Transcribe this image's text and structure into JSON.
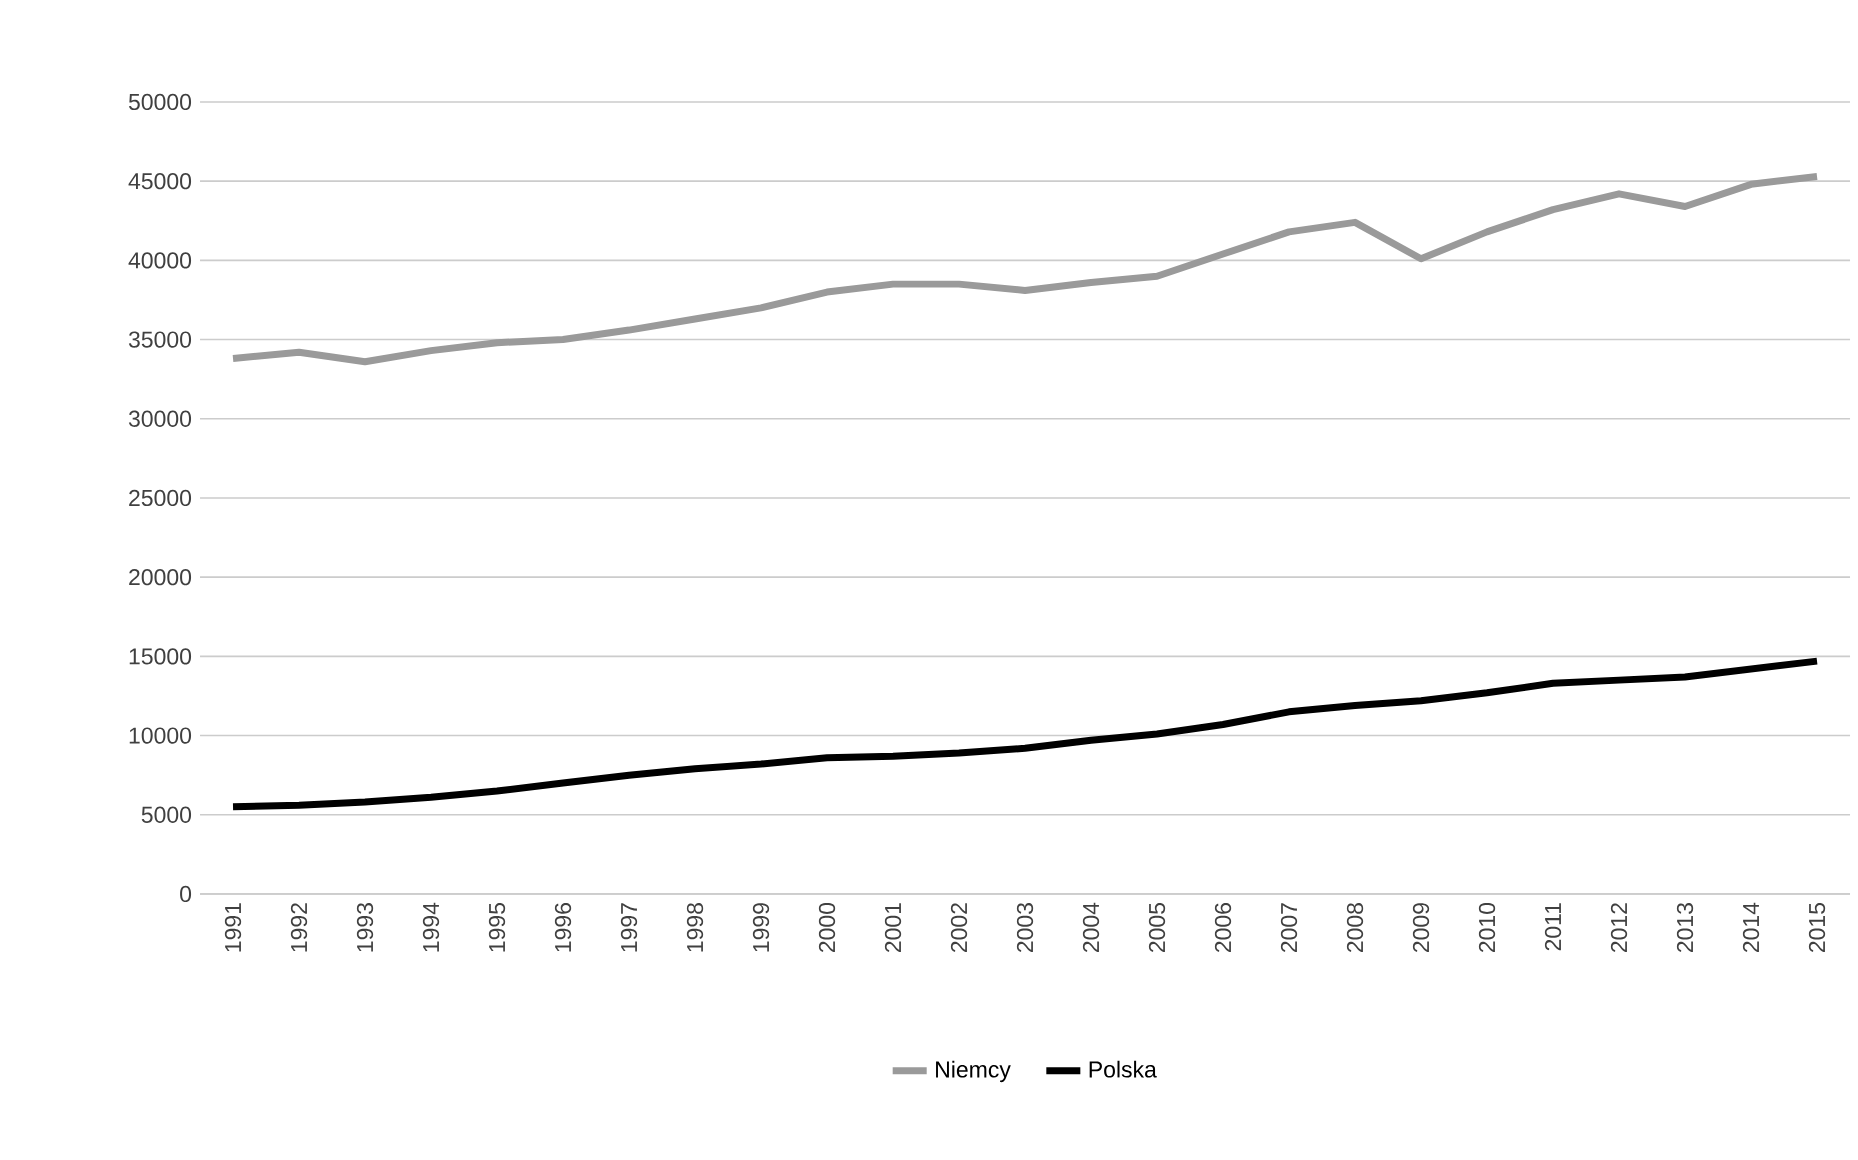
{
  "chart_data": {
    "type": "line",
    "categories": [
      "1991",
      "1992",
      "1993",
      "1994",
      "1995",
      "1996",
      "1997",
      "1998",
      "1999",
      "2000",
      "2001",
      "2002",
      "2003",
      "2004",
      "2005",
      "2006",
      "2007",
      "2008",
      "2009",
      "2010",
      "2011",
      "2012",
      "2013",
      "2014",
      "2015"
    ],
    "series": [
      {
        "name": "Niemcy",
        "color": "#9a9a9a",
        "values": [
          33800,
          34200,
          33600,
          34300,
          34800,
          35000,
          35600,
          36300,
          37000,
          38000,
          38500,
          38500,
          38100,
          38600,
          39000,
          40400,
          41800,
          42400,
          40100,
          41800,
          43200,
          44200,
          43400,
          44800,
          45300
        ]
      },
      {
        "name": "Polska",
        "color": "#000000",
        "values": [
          5500,
          5600,
          5800,
          6100,
          6500,
          7000,
          7500,
          7900,
          8200,
          8600,
          8700,
          8900,
          9200,
          9700,
          10100,
          10700,
          11500,
          11900,
          12200,
          12700,
          13300,
          13500,
          13700,
          14200,
          14700
        ]
      }
    ],
    "ylim": [
      0,
      50000
    ],
    "yticks": [
      0,
      5000,
      10000,
      15000,
      20000,
      25000,
      30000,
      35000,
      40000,
      45000,
      50000
    ],
    "grid": "y",
    "legend": "bottom",
    "marker": "none",
    "line_style": "solid"
  }
}
